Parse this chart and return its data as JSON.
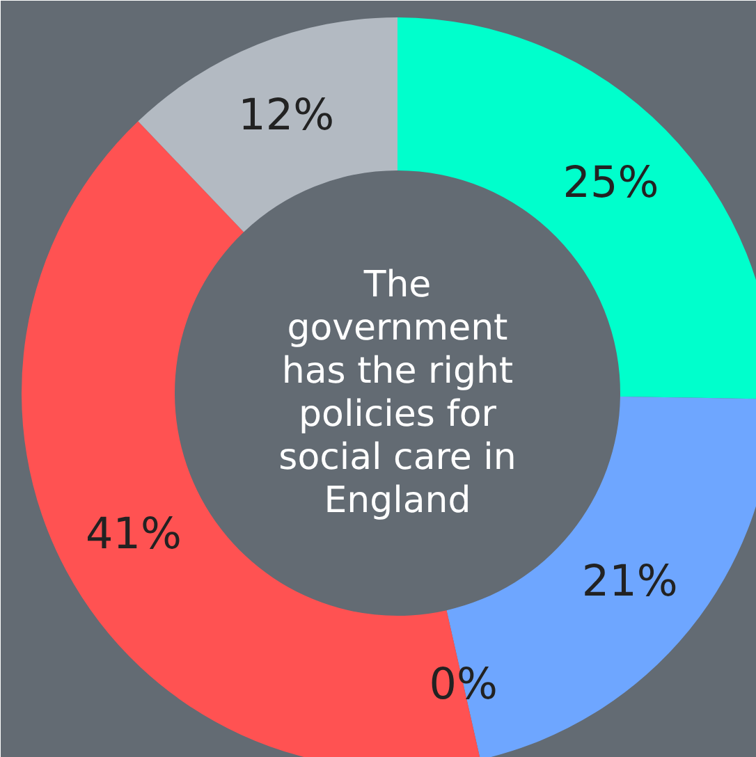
{
  "chart_data": {
    "type": "donut",
    "title": "The\ngovernment\nhas the right\npolicies for\nsocial care in\nEngland",
    "categories": [
      null,
      null,
      null,
      null,
      null
    ],
    "values": [
      25,
      21,
      0,
      41,
      12
    ],
    "colors": [
      "#00ffcc",
      "#6ea6ff",
      "#ffd966",
      "#ff5252",
      "#b3bac2"
    ],
    "value_labels": [
      "25%",
      "21%",
      "0%",
      "41%",
      "12%"
    ]
  }
}
